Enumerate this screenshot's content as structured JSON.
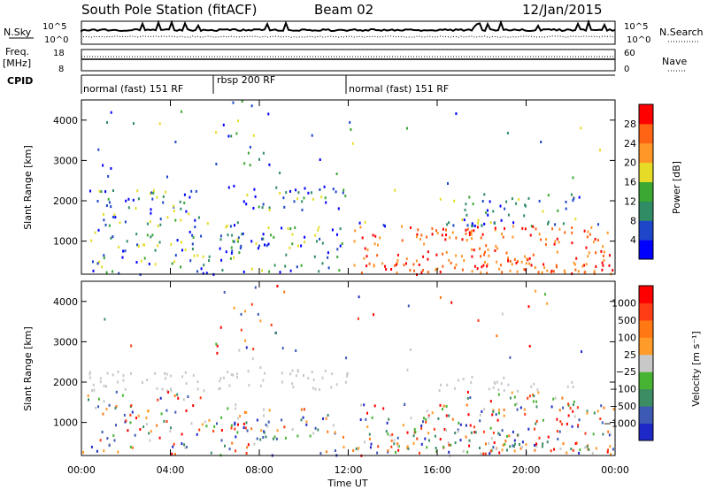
{
  "header": {
    "station": "South Pole Station (fitACF)",
    "beam": "Beam 02",
    "date": "12/Jan/2015"
  },
  "panels": {
    "nsky_label": "N.Sky",
    "nsearch_label": "N.Search",
    "nsky_ticks": [
      "10^5",
      "10^0"
    ],
    "freq_label": "Freq.",
    "freq_unit": "[MHz]",
    "freq_ticks": [
      "18",
      "8"
    ],
    "nave_label": "Nave",
    "nave_ticks": [
      "60",
      "0"
    ],
    "cpid_label": "CPID",
    "cpid_modes": [
      "normal (fast) 151 RF",
      "rbsp 200 RF",
      "normal (fast) 151 RF"
    ]
  },
  "colors": {
    "power_scale": [
      "#0000ff",
      "#1e46c8",
      "#2f8c64",
      "#3aa832",
      "#e6dc28",
      "#ff9628",
      "#ff6414",
      "#ff0000"
    ],
    "velocity_scale": [
      "#1e28c8",
      "#3c5ab4",
      "#3c8c64",
      "#46b432",
      "#c8c8c8",
      "#ff9b28",
      "#ff7814",
      "#ff3c14",
      "#ff0000"
    ]
  },
  "chart_data": [
    {
      "type": "heatmap",
      "ylabel": "Slant Range [km]",
      "x_ticks": [
        "00:00",
        "04:00",
        "08:00",
        "12:00",
        "16:00",
        "20:00",
        "00:00"
      ],
      "xlim": [
        0,
        24
      ],
      "y_ticks": [
        1000,
        2000,
        3000,
        4000
      ],
      "ylim": [
        180,
        4500
      ],
      "colorbar_label": "Power [dB]",
      "colorbar_ticks": [
        4,
        8,
        12,
        16,
        20,
        24,
        28
      ],
      "clim": [
        0,
        32
      ]
    },
    {
      "type": "heatmap",
      "ylabel": "Slant Range [km]",
      "xlabel": "Time UT",
      "x_ticks": [
        "00:00",
        "04:00",
        "08:00",
        "12:00",
        "16:00",
        "20:00",
        "00:00"
      ],
      "xlim": [
        0,
        24
      ],
      "y_ticks": [
        1000,
        2000,
        3000,
        4000
      ],
      "ylim": [
        180,
        4500
      ],
      "colorbar_label": "Velocity [m s⁻¹]",
      "colorbar_ticks": [
        "1000",
        "500",
        "100",
        "25",
        "−25",
        "−100",
        "−500",
        "−1000"
      ]
    }
  ]
}
